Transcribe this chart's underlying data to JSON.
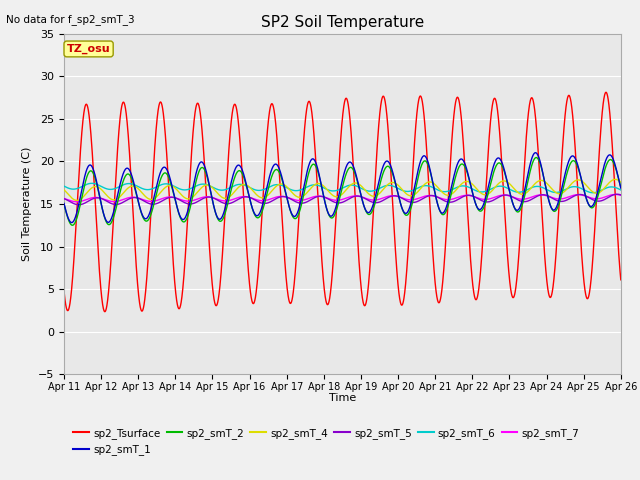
{
  "title": "SP2 Soil Temperature",
  "xlabel": "Time",
  "ylabel": "Soil Temperature (C)",
  "no_data_note": "No data for f_sp2_smT_3",
  "tz_label": "TZ_osu",
  "ylim": [
    -5,
    35
  ],
  "yticks": [
    -5,
    0,
    5,
    10,
    15,
    20,
    25,
    30,
    35
  ],
  "x_start": 0,
  "x_end": 15,
  "xtick_labels": [
    "Apr 11",
    "Apr 12",
    "Apr 13",
    "Apr 14",
    "Apr 15",
    "Apr 16",
    "Apr 17",
    "Apr 18",
    "Apr 19",
    "Apr 20",
    "Apr 21",
    "Apr 22",
    "Apr 23",
    "Apr 24",
    "Apr 25",
    "Apr 26"
  ],
  "xtick_positions": [
    0,
    1,
    2,
    3,
    4,
    5,
    6,
    7,
    8,
    9,
    10,
    11,
    12,
    13,
    14,
    15
  ],
  "fig_bg_color": "#f0f0f0",
  "plot_bg_color": "#e8e8e8",
  "grid_color": "#ffffff",
  "series": {
    "sp2_Tsurface": {
      "color": "#ff0000",
      "linewidth": 1.0,
      "label": "sp2_Tsurface"
    },
    "sp2_smT_1": {
      "color": "#0000cc",
      "linewidth": 1.0,
      "label": "sp2_smT_1"
    },
    "sp2_smT_2": {
      "color": "#00bb00",
      "linewidth": 1.0,
      "label": "sp2_smT_2"
    },
    "sp2_smT_4": {
      "color": "#dddd00",
      "linewidth": 1.0,
      "label": "sp2_smT_4"
    },
    "sp2_smT_5": {
      "color": "#8800cc",
      "linewidth": 1.0,
      "label": "sp2_smT_5"
    },
    "sp2_smT_6": {
      "color": "#00cccc",
      "linewidth": 1.0,
      "label": "sp2_smT_6"
    },
    "sp2_smT_7": {
      "color": "#ff00ff",
      "linewidth": 1.0,
      "label": "sp2_smT_7"
    }
  },
  "legend_order": [
    "sp2_Tsurface",
    "sp2_smT_1",
    "sp2_smT_2",
    "sp2_smT_4",
    "sp2_smT_5",
    "sp2_smT_6",
    "sp2_smT_7"
  ]
}
